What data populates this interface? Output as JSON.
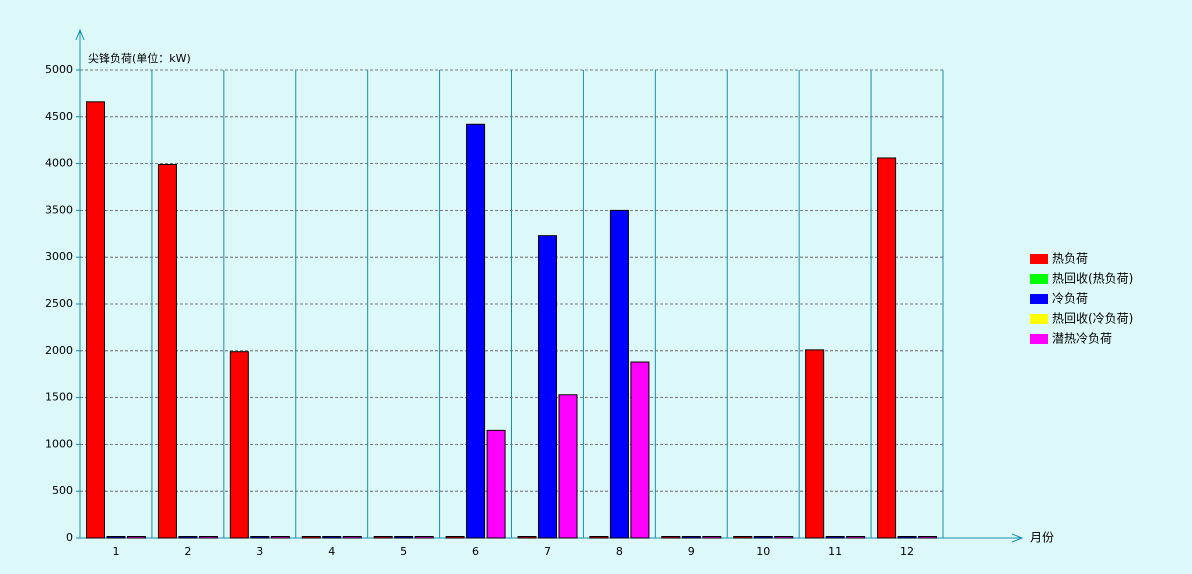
{
  "chart_data": {
    "type": "bar",
    "y_label": "尖锋负荷(单位：kW)",
    "x_label": "月份",
    "categories": [
      "1",
      "2",
      "3",
      "4",
      "5",
      "6",
      "7",
      "8",
      "9",
      "10",
      "11",
      "12"
    ],
    "series": [
      {
        "name": "热负荷",
        "color": "#ff0000",
        "values": [
          4660,
          3990,
          1990,
          0,
          0,
          0,
          0,
          0,
          0,
          0,
          2010,
          4060
        ]
      },
      {
        "name": "热回收(热负荷)",
        "color": "#00ff00",
        "values": [
          null,
          null,
          null,
          null,
          null,
          null,
          null,
          null,
          null,
          null,
          null,
          null
        ]
      },
      {
        "name": "冷负荷",
        "color": "#0000ff",
        "values": [
          0,
          0,
          0,
          0,
          0,
          4420,
          3230,
          3500,
          0,
          0,
          0,
          0
        ]
      },
      {
        "name": "热回收(冷负荷)",
        "color": "#ffff00",
        "values": [
          null,
          null,
          null,
          null,
          null,
          null,
          null,
          null,
          null,
          null,
          null,
          null
        ]
      },
      {
        "name": "潜热冷负荷",
        "color": "#ff00ff",
        "values": [
          0,
          0,
          0,
          0,
          0,
          1150,
          1530,
          1880,
          0,
          0,
          0,
          0
        ]
      }
    ],
    "ylim": [
      0,
      5000
    ],
    "yticks": [
      0,
      500,
      1000,
      1500,
      2000,
      2500,
      3000,
      3500,
      4000,
      4500,
      5000
    ],
    "grid": true,
    "legend": "right"
  }
}
